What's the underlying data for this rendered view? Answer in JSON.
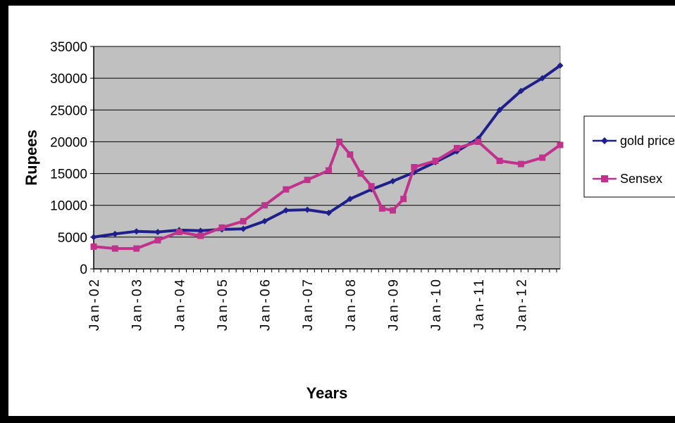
{
  "chart_data": {
    "type": "line",
    "xlabel": "Years",
    "ylabel": "Rupees",
    "ylim": [
      0,
      35000
    ],
    "yticks": [
      0,
      5000,
      10000,
      15000,
      20000,
      25000,
      30000,
      35000
    ],
    "xticks": [
      "Jan-02",
      "Jan-03",
      "Jan-04",
      "Jan-05",
      "Jan-06",
      "Jan-07",
      "Jan-08",
      "Jan-09",
      "Jan-10",
      "Jan-11",
      "Jan-12"
    ],
    "x_start": "2002-01",
    "x_end": "2012-12",
    "grid": true,
    "legend_position": "right",
    "plot_background": "#c0c0c0",
    "series": [
      {
        "name": "gold price",
        "color": "#1f1f8c",
        "marker": "diamond",
        "x": [
          "2002-01",
          "2002-07",
          "2003-01",
          "2003-07",
          "2004-01",
          "2004-07",
          "2005-01",
          "2005-07",
          "2006-01",
          "2006-07",
          "2007-01",
          "2007-07",
          "2008-01",
          "2008-07",
          "2009-01",
          "2009-07",
          "2010-01",
          "2010-07",
          "2011-01",
          "2011-07",
          "2012-01",
          "2012-07",
          "2012-12"
        ],
        "values": [
          5000,
          5500,
          5900,
          5800,
          6100,
          6000,
          6200,
          6300,
          7500,
          9200,
          9300,
          8800,
          11000,
          12500,
          13800,
          15200,
          16800,
          18500,
          20500,
          25000,
          28000,
          30000,
          32000
        ]
      },
      {
        "name": "Sensex",
        "color": "#c0328c",
        "marker": "square",
        "x": [
          "2002-01",
          "2002-07",
          "2003-01",
          "2003-07",
          "2004-01",
          "2004-07",
          "2005-01",
          "2005-07",
          "2006-01",
          "2006-07",
          "2007-01",
          "2007-07",
          "2007-10",
          "2008-01",
          "2008-04",
          "2008-07",
          "2008-10",
          "2009-01",
          "2009-04",
          "2009-07",
          "2010-01",
          "2010-07",
          "2011-01",
          "2011-07",
          "2012-01",
          "2012-07",
          "2012-12"
        ],
        "values": [
          3500,
          3200,
          3200,
          4500,
          5800,
          5200,
          6500,
          7500,
          10000,
          12500,
          14000,
          15500,
          20000,
          18000,
          15000,
          13000,
          9500,
          9200,
          11000,
          16000,
          17000,
          19000,
          20000,
          17000,
          16500,
          17500,
          19500
        ]
      }
    ]
  }
}
